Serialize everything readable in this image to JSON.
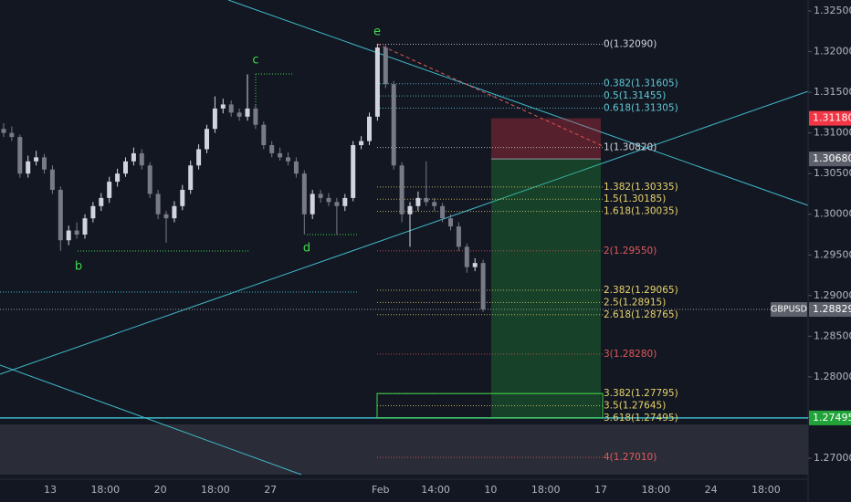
{
  "chart_data": {
    "type": "candlestick",
    "symbol": "GBPUSD",
    "up_color": "#d1d4dc",
    "down_color": "#787b86",
    "ylim": [
      1.27,
      1.325
    ],
    "yticks": [
      {
        "value": 1.325,
        "label": "1.32500"
      },
      {
        "value": 1.32,
        "label": "1.32000"
      },
      {
        "value": 1.315,
        "label": "1.31500"
      },
      {
        "value": 1.31,
        "label": "1.31000"
      },
      {
        "value": 1.305,
        "label": "1.30500"
      },
      {
        "value": 1.3,
        "label": "1.30000"
      },
      {
        "value": 1.295,
        "label": "1.29500"
      },
      {
        "value": 1.29,
        "label": "1.29000"
      },
      {
        "value": 1.285,
        "label": "1.28500"
      },
      {
        "value": 1.28,
        "label": "1.28000"
      },
      {
        "value": 1.275,
        "label": "1.27500"
      },
      {
        "value": 1.27,
        "label": "1.27000"
      }
    ],
    "x_labels": [
      "13",
      "18:00",
      "20",
      "18:00",
      "27",
      "Feb",
      "14:00",
      "10",
      "18:00",
      "17",
      "18:00",
      "24",
      "18:00"
    ],
    "candles": [
      [
        1.3105,
        1.3112,
        1.3095,
        1.31
      ],
      [
        1.31,
        1.3108,
        1.309,
        1.3095
      ],
      [
        1.3095,
        1.3098,
        1.3045,
        1.305
      ],
      [
        1.305,
        1.3072,
        1.3045,
        1.3065
      ],
      [
        1.3065,
        1.3078,
        1.306,
        1.307
      ],
      [
        1.307,
        1.3074,
        1.305,
        1.3055
      ],
      [
        1.3055,
        1.306,
        1.3025,
        1.303
      ],
      [
        1.303,
        1.3034,
        1.2955,
        1.2968
      ],
      [
        1.2968,
        1.2986,
        1.2962,
        1.298
      ],
      [
        1.298,
        1.299,
        1.297,
        1.2975
      ],
      [
        1.2975,
        1.3,
        1.297,
        1.2995
      ],
      [
        1.2995,
        1.3015,
        1.299,
        1.301
      ],
      [
        1.301,
        1.3026,
        1.3004,
        1.302
      ],
      [
        1.302,
        1.3046,
        1.3014,
        1.304
      ],
      [
        1.304,
        1.3056,
        1.3034,
        1.305
      ],
      [
        1.305,
        1.307,
        1.3046,
        1.3065
      ],
      [
        1.3065,
        1.3082,
        1.306,
        1.3075
      ],
      [
        1.3075,
        1.308,
        1.3055,
        1.306
      ],
      [
        1.306,
        1.3064,
        1.302,
        1.3025
      ],
      [
        1.3025,
        1.303,
        1.2994,
        1.3
      ],
      [
        1.3,
        1.3004,
        1.2965,
        1.2995
      ],
      [
        1.2995,
        1.3016,
        1.299,
        1.301
      ],
      [
        1.301,
        1.3036,
        1.3005,
        1.303
      ],
      [
        1.303,
        1.3066,
        1.3025,
        1.306
      ],
      [
        1.306,
        1.3086,
        1.3055,
        1.308
      ],
      [
        1.308,
        1.311,
        1.3075,
        1.3105
      ],
      [
        1.3105,
        1.3145,
        1.31,
        1.313
      ],
      [
        1.313,
        1.3142,
        1.3124,
        1.3135
      ],
      [
        1.3135,
        1.314,
        1.312,
        1.3125
      ],
      [
        1.3125,
        1.313,
        1.3115,
        1.312
      ],
      [
        1.312,
        1.3172,
        1.3115,
        1.313
      ],
      [
        1.313,
        1.3134,
        1.3105,
        1.311
      ],
      [
        1.311,
        1.3114,
        1.308,
        1.3085
      ],
      [
        1.3085,
        1.309,
        1.307,
        1.3075
      ],
      [
        1.3075,
        1.3082,
        1.3066,
        1.307
      ],
      [
        1.307,
        1.3076,
        1.306,
        1.3065
      ],
      [
        1.3065,
        1.307,
        1.3045,
        1.305
      ],
      [
        1.305,
        1.3054,
        1.2975,
        1.3
      ],
      [
        1.3,
        1.303,
        1.2994,
        1.3025
      ],
      [
        1.3025,
        1.303,
        1.3014,
        1.302
      ],
      [
        1.302,
        1.3026,
        1.301,
        1.3015
      ],
      [
        1.3015,
        1.302,
        1.2975,
        1.301
      ],
      [
        1.301,
        1.3025,
        1.3004,
        1.302
      ],
      [
        1.302,
        1.309,
        1.3016,
        1.3085
      ],
      [
        1.3085,
        1.3096,
        1.308,
        1.309
      ],
      [
        1.309,
        1.3125,
        1.3085,
        1.312
      ],
      [
        1.312,
        1.3209,
        1.3115,
        1.3205
      ],
      [
        1.3205,
        1.3208,
        1.3155,
        1.316
      ],
      [
        1.316,
        1.3164,
        1.3055,
        1.306
      ],
      [
        1.306,
        1.3064,
        1.299,
        1.3
      ],
      [
        1.3,
        1.3015,
        1.296,
        1.301
      ],
      [
        1.301,
        1.3028,
        1.3004,
        1.302
      ],
      [
        1.302,
        1.3065,
        1.301,
        1.3015
      ],
      [
        1.3015,
        1.302,
        1.3004,
        1.301
      ],
      [
        1.301,
        1.3014,
        1.299,
        1.2995
      ],
      [
        1.2995,
        1.3,
        1.298,
        1.2985
      ],
      [
        1.2985,
        1.299,
        1.2955,
        1.296
      ],
      [
        1.296,
        1.2964,
        1.2928,
        1.2935
      ],
      [
        1.2935,
        1.2946,
        1.293,
        1.294
      ],
      [
        1.294,
        1.2944,
        1.288,
        1.2883
      ]
    ],
    "fib_levels": [
      {
        "label": "0(1.32090)",
        "price": 1.3209,
        "color": "#d1d4dc"
      },
      {
        "label": "0.382(1.31605)",
        "price": 1.31605,
        "color": "#5fc9d6"
      },
      {
        "label": "0.5(1.31455)",
        "price": 1.31455,
        "color": "#5fc9d6"
      },
      {
        "label": "0.618(1.31305)",
        "price": 1.31305,
        "color": "#5fc9d6"
      },
      {
        "label": "1(1.30820)",
        "price": 1.3082,
        "color": "#d1d4dc"
      },
      {
        "label": "1.382(1.30335)",
        "price": 1.30335,
        "color": "#e6d36a"
      },
      {
        "label": "1.5(1.30185)",
        "price": 1.30185,
        "color": "#e6d36a"
      },
      {
        "label": "1.618(1.30035)",
        "price": 1.30035,
        "color": "#e6d36a"
      },
      {
        "label": "2(1.29550)",
        "price": 1.2955,
        "color": "#e05a5a"
      },
      {
        "label": "2.382(1.29065)",
        "price": 1.29065,
        "color": "#e6d36a"
      },
      {
        "label": "2.5(1.28915)",
        "price": 1.28915,
        "color": "#e6d36a"
      },
      {
        "label": "2.618(1.28765)",
        "price": 1.28765,
        "color": "#e6d36a"
      },
      {
        "label": "3(1.28280)",
        "price": 1.2828,
        "color": "#e05a5a"
      },
      {
        "label": "3.382(1.27795)",
        "price": 1.27795,
        "color": "#e6d36a"
      },
      {
        "label": "3.5(1.27645)",
        "price": 1.27645,
        "color": "#e6d36a"
      },
      {
        "label": "3.618(1.27495)",
        "price": 1.27495,
        "color": "#e6d36a"
      },
      {
        "label": "4(1.27010)",
        "price": 1.2701,
        "color": "#e05a5a"
      }
    ],
    "price_tags": [
      {
        "value": 1.3118,
        "label": "1.31180",
        "color": "#f23645"
      },
      {
        "value": 1.3068,
        "label": "1.30680",
        "color": "#5d606b"
      },
      {
        "value": 1.28829,
        "label": "1.28829",
        "color": "#5d606b"
      },
      {
        "value": 1.27495,
        "label": "1.27495",
        "color": "#22a33a"
      }
    ],
    "pattern_labels": [
      "b",
      "c",
      "d",
      "e"
    ]
  }
}
